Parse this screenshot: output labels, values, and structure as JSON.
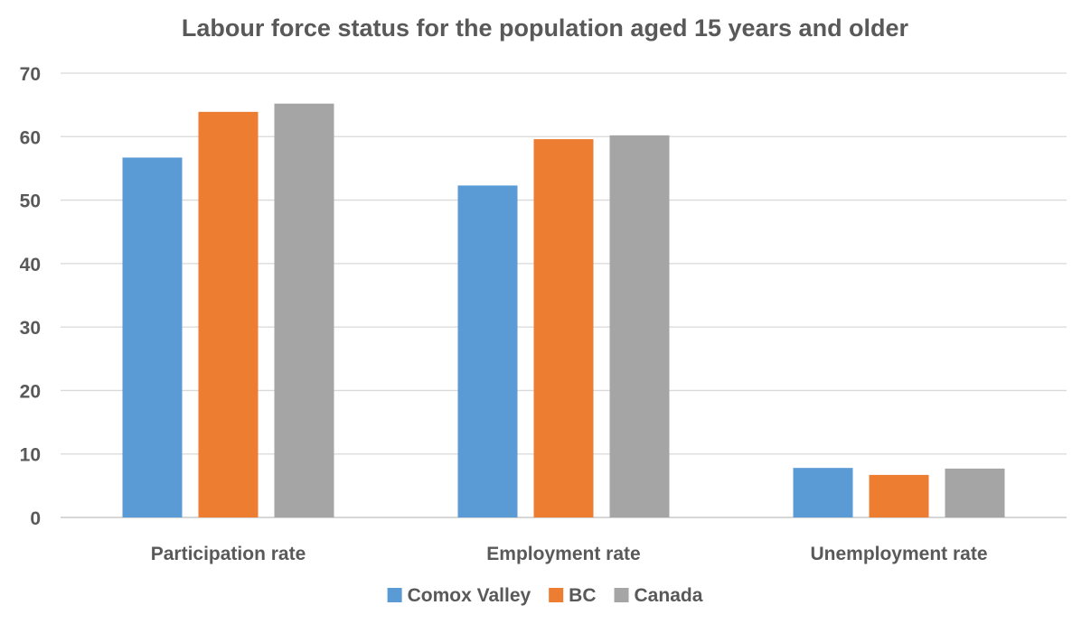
{
  "chart_data": {
    "type": "bar",
    "title": "Labour force status for the population aged 15 years and older",
    "xlabel": "",
    "ylabel": "",
    "ylim": [
      0,
      70
    ],
    "yticks": [
      0,
      10,
      20,
      30,
      40,
      50,
      60,
      70
    ],
    "grid": true,
    "legend_position": "bottom",
    "categories": [
      "Participation rate",
      "Employment rate",
      "Unemployment rate"
    ],
    "series": [
      {
        "name": "Comox Valley",
        "color": "#5B9BD5",
        "values": [
          56.7,
          52.3,
          7.8
        ]
      },
      {
        "name": "BC",
        "color": "#ED7D31",
        "values": [
          63.9,
          59.6,
          6.7
        ]
      },
      {
        "name": "Canada",
        "color": "#A5A5A5",
        "values": [
          65.2,
          60.2,
          7.7
        ]
      }
    ]
  }
}
